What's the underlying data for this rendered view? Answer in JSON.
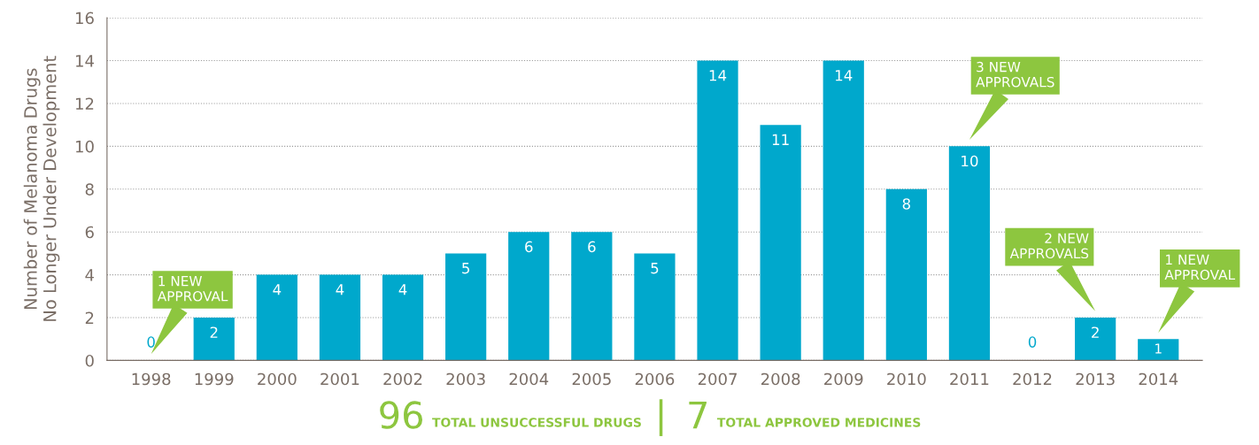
{
  "chart_data": {
    "type": "bar",
    "ylabel": "Number of Melanoma Drugs\nNo Longer Under Development",
    "categories": [
      "1998",
      "1999",
      "2000",
      "2001",
      "2002",
      "2003",
      "2004",
      "2005",
      "2006",
      "2007",
      "2008",
      "2009",
      "2010",
      "2011",
      "2012",
      "2013",
      "2014"
    ],
    "values": [
      0,
      2,
      4,
      4,
      4,
      5,
      6,
      6,
      5,
      14,
      11,
      14,
      8,
      10,
      0,
      2,
      1
    ],
    "color": "#00a8cc",
    "ylim": [
      0,
      16
    ],
    "yticks": [
      0,
      2,
      4,
      6,
      8,
      10,
      12,
      14,
      16
    ],
    "grid": "y",
    "data_labels": true,
    "annotations": [
      "1 NEW\nAPPROVAL",
      "3 NEW\nAPPROVALS",
      "2 NEW\nAPPROVALS",
      "1 NEW\nAPPROVAL",
      "96 TOTAL UNSUCCESSFUL DRUGS",
      "|",
      "7 TOTAL APPROVED MEDICINES"
    ]
  }
}
